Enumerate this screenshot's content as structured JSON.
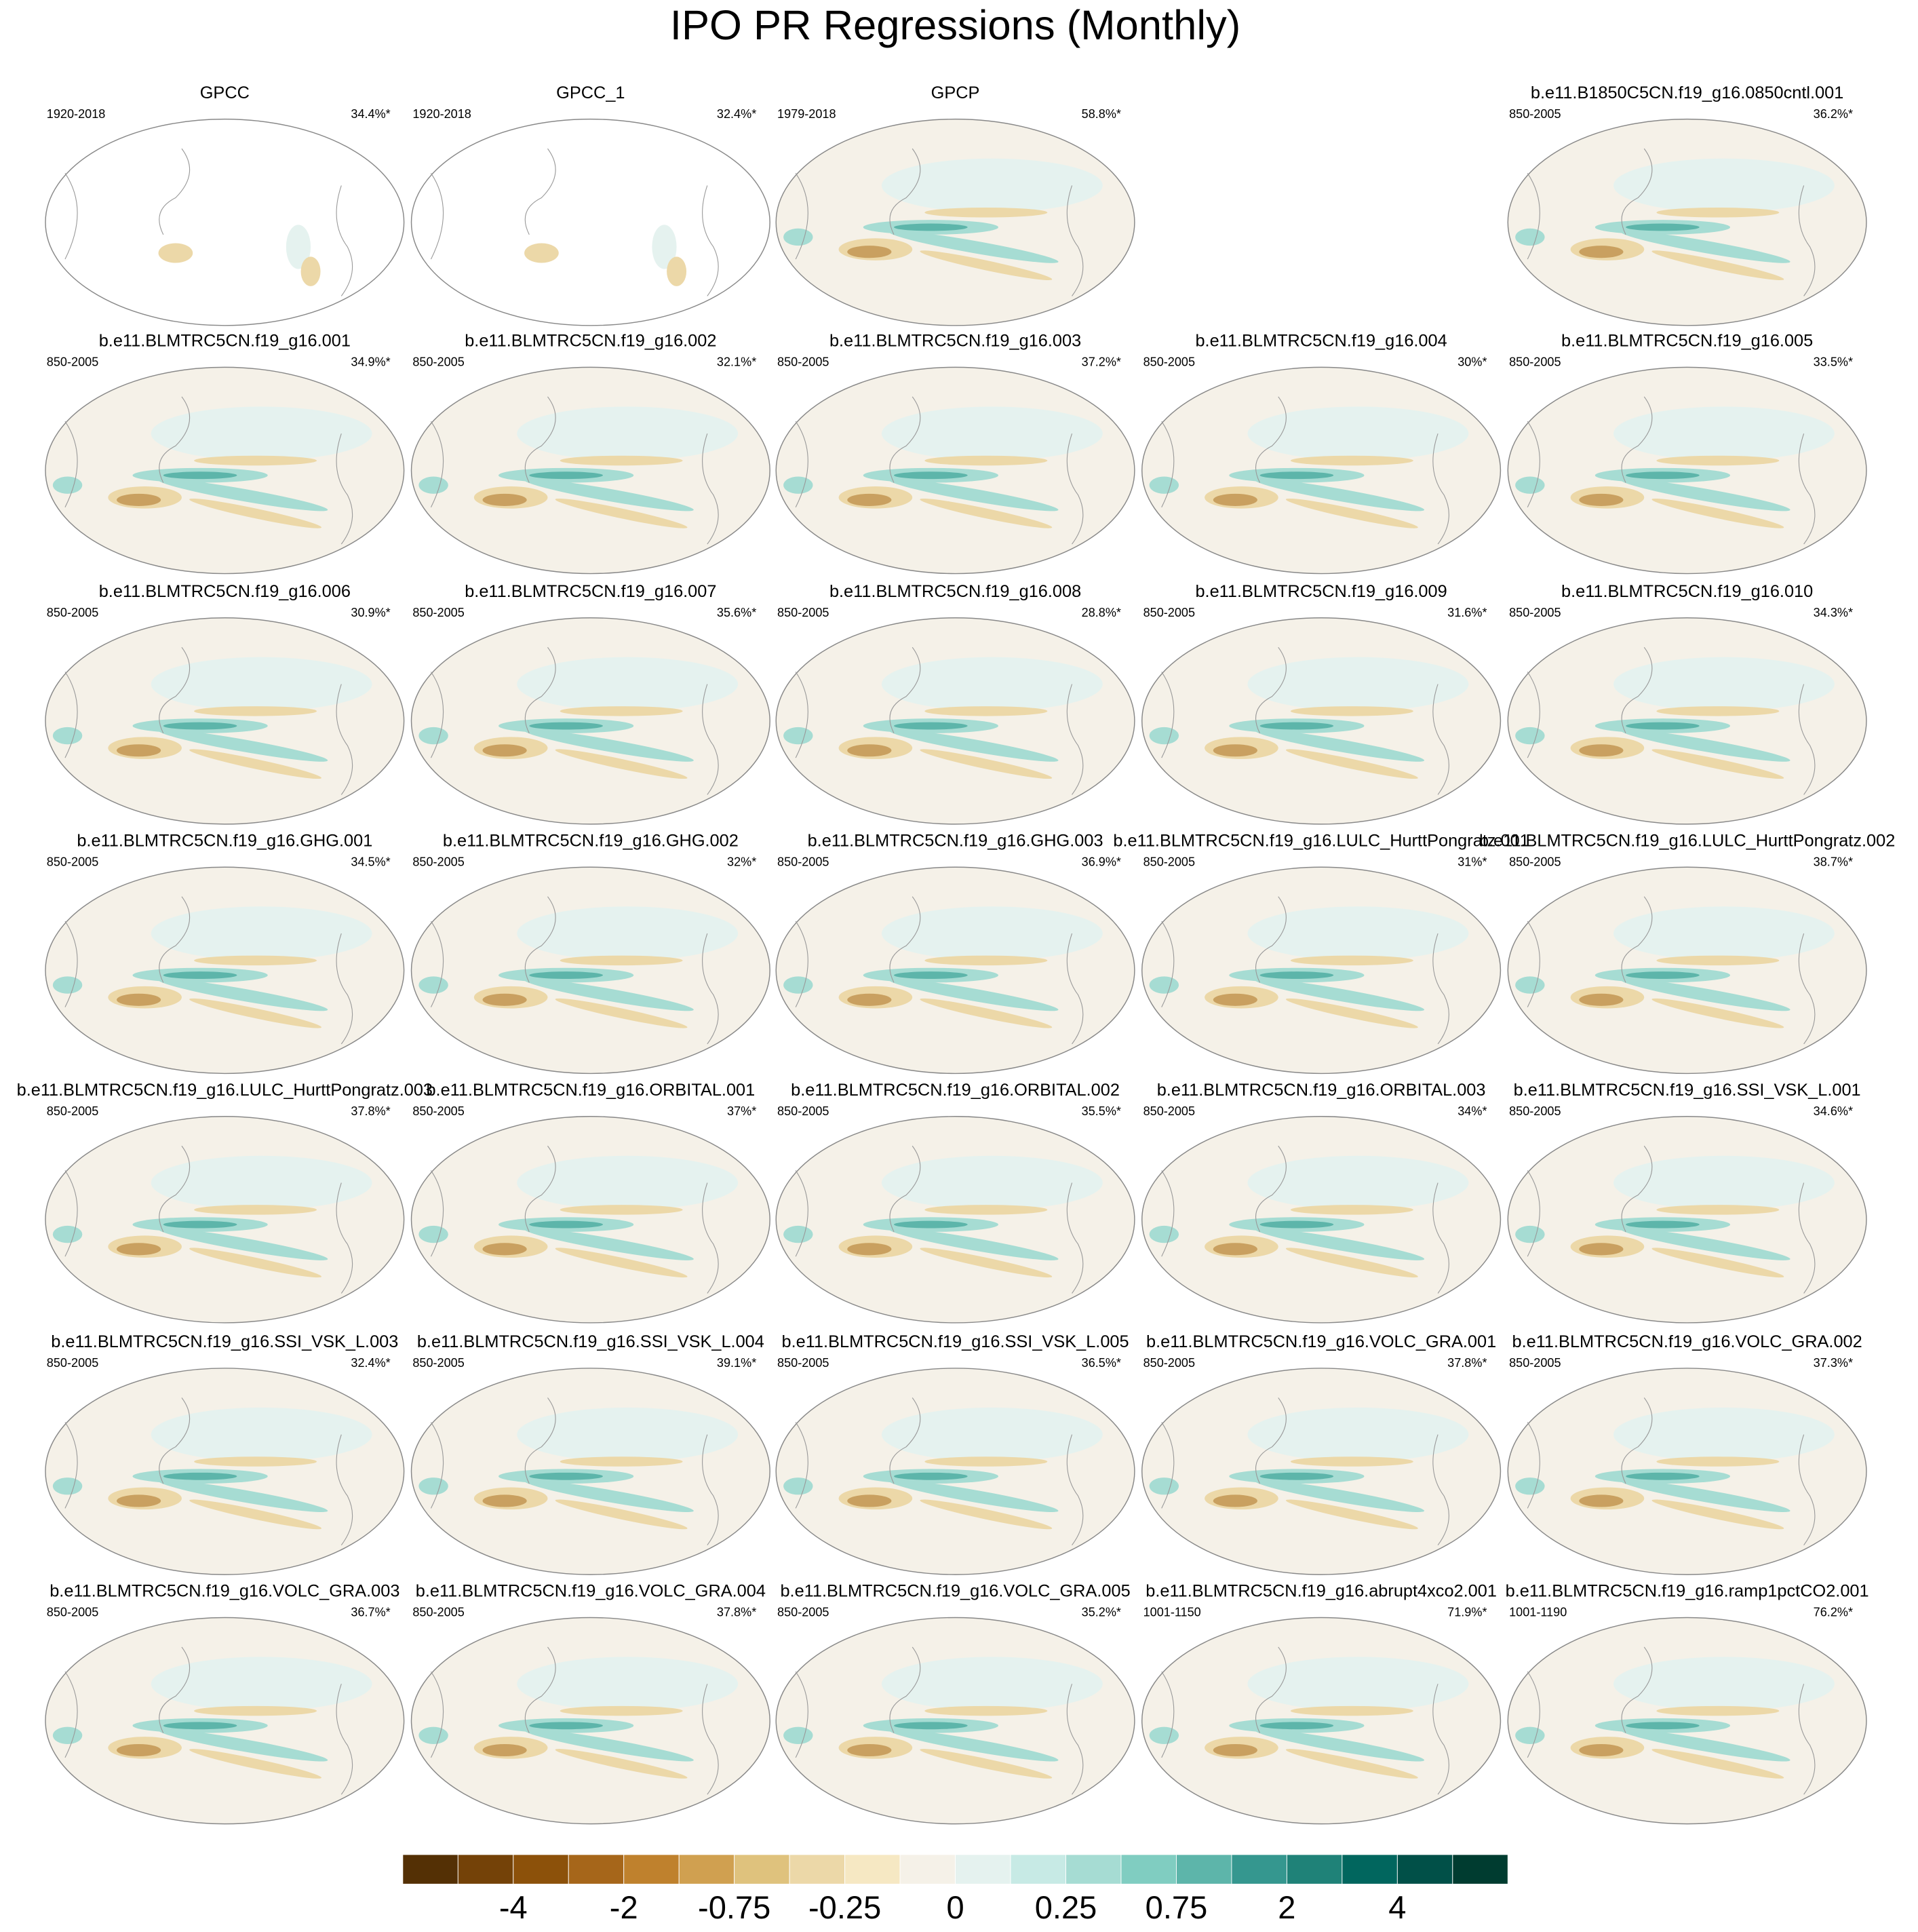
{
  "chart_data": {
    "type": "map-panels",
    "title": "IPO PR Regressions (Monthly)",
    "panels": [
      {
        "title": "GPCC",
        "period": "1920-2018",
        "pct": "34.4%*"
      },
      {
        "title": "GPCC_1",
        "period": "1920-2018",
        "pct": "32.4%*"
      },
      {
        "title": "GPCP",
        "period": "1979-2018",
        "pct": "58.8%*"
      },
      {
        "title": "b.e11.B1850C5CN.f19_g16.0850cntl.001",
        "period": "850-2005",
        "pct": "36.2%*"
      },
      {
        "title": "b.e11.BLMTRC5CN.f19_g16.001",
        "period": "850-2005",
        "pct": "34.9%*"
      },
      {
        "title": "b.e11.BLMTRC5CN.f19_g16.002",
        "period": "850-2005",
        "pct": "32.1%*"
      },
      {
        "title": "b.e11.BLMTRC5CN.f19_g16.003",
        "period": "850-2005",
        "pct": "37.2%*"
      },
      {
        "title": "b.e11.BLMTRC5CN.f19_g16.004",
        "period": "850-2005",
        "pct": "30%*"
      },
      {
        "title": "b.e11.BLMTRC5CN.f19_g16.005",
        "period": "850-2005",
        "pct": "33.5%*"
      },
      {
        "title": "b.e11.BLMTRC5CN.f19_g16.006",
        "period": "850-2005",
        "pct": "30.9%*"
      },
      {
        "title": "b.e11.BLMTRC5CN.f19_g16.007",
        "period": "850-2005",
        "pct": "35.6%*"
      },
      {
        "title": "b.e11.BLMTRC5CN.f19_g16.008",
        "period": "850-2005",
        "pct": "28.8%*"
      },
      {
        "title": "b.e11.BLMTRC5CN.f19_g16.009",
        "period": "850-2005",
        "pct": "31.6%*"
      },
      {
        "title": "b.e11.BLMTRC5CN.f19_g16.010",
        "period": "850-2005",
        "pct": "34.3%*"
      },
      {
        "title": "b.e11.BLMTRC5CN.f19_g16.GHG.001",
        "period": "850-2005",
        "pct": "34.5%*"
      },
      {
        "title": "b.e11.BLMTRC5CN.f19_g16.GHG.002",
        "period": "850-2005",
        "pct": "32%*"
      },
      {
        "title": "b.e11.BLMTRC5CN.f19_g16.GHG.003",
        "period": "850-2005",
        "pct": "36.9%*"
      },
      {
        "title": "b.e11.BLMTRC5CN.f19_g16.LULC_HurttPongratz.001",
        "period": "850-2005",
        "pct": "31%*"
      },
      {
        "title": "b.e11.BLMTRC5CN.f19_g16.LULC_HurttPongratz.002",
        "period": "850-2005",
        "pct": "38.7%*"
      },
      {
        "title": "b.e11.BLMTRC5CN.f19_g16.LULC_HurttPongratz.003",
        "period": "850-2005",
        "pct": "37.8%*"
      },
      {
        "title": "b.e11.BLMTRC5CN.f19_g16.ORBITAL.001",
        "period": "850-2005",
        "pct": "37%*"
      },
      {
        "title": "b.e11.BLMTRC5CN.f19_g16.ORBITAL.002",
        "period": "850-2005",
        "pct": "35.5%*"
      },
      {
        "title": "b.e11.BLMTRC5CN.f19_g16.ORBITAL.003",
        "period": "850-2005",
        "pct": "34%*"
      },
      {
        "title": "b.e11.BLMTRC5CN.f19_g16.SSI_VSK_L.001",
        "period": "850-2005",
        "pct": "34.6%*"
      },
      {
        "title": "b.e11.BLMTRC5CN.f19_g16.SSI_VSK_L.003",
        "period": "850-2005",
        "pct": "32.4%*"
      },
      {
        "title": "b.e11.BLMTRC5CN.f19_g16.SSI_VSK_L.004",
        "period": "850-2005",
        "pct": "39.1%*"
      },
      {
        "title": "b.e11.BLMTRC5CN.f19_g16.SSI_VSK_L.005",
        "period": "850-2005",
        "pct": "36.5%*"
      },
      {
        "title": "b.e11.BLMTRC5CN.f19_g16.VOLC_GRA.001",
        "period": "850-2005",
        "pct": "37.8%*"
      },
      {
        "title": "b.e11.BLMTRC5CN.f19_g16.VOLC_GRA.002",
        "period": "850-2005",
        "pct": "37.3%*"
      },
      {
        "title": "b.e11.BLMTRC5CN.f19_g16.VOLC_GRA.003",
        "period": "850-2005",
        "pct": "36.7%*"
      },
      {
        "title": "b.e11.BLMTRC5CN.f19_g16.VOLC_GRA.004",
        "period": "850-2005",
        "pct": "37.8%*"
      },
      {
        "title": "b.e11.BLMTRC5CN.f19_g16.VOLC_GRA.005",
        "period": "850-2005",
        "pct": "35.2%*"
      },
      {
        "title": "b.e11.BLMTRC5CN.f19_g16.abrupt4xco2.001",
        "period": "1001-1150",
        "pct": "71.9%*"
      },
      {
        "title": "b.e11.BLMTRC5CN.f19_g16.ramp1pctCO2.001",
        "period": "1001-1190",
        "pct": "76.2%*"
      }
    ],
    "colorbar": {
      "colors": [
        "#543005",
        "#744208",
        "#8c510a",
        "#a6661a",
        "#bf812d",
        "#d0a050",
        "#dfc27d",
        "#ecd8a8",
        "#f6e8c3",
        "#f5f1e8",
        "#e5f2ef",
        "#c7eae5",
        "#a6dcd3",
        "#80cdc1",
        "#5db5aa",
        "#35978f",
        "#1f8278",
        "#01665e",
        "#015048",
        "#003c30"
      ],
      "ticks": [
        -4,
        -2,
        -0.75,
        -0.25,
        0,
        0.25,
        0.75,
        2,
        4
      ]
    }
  }
}
